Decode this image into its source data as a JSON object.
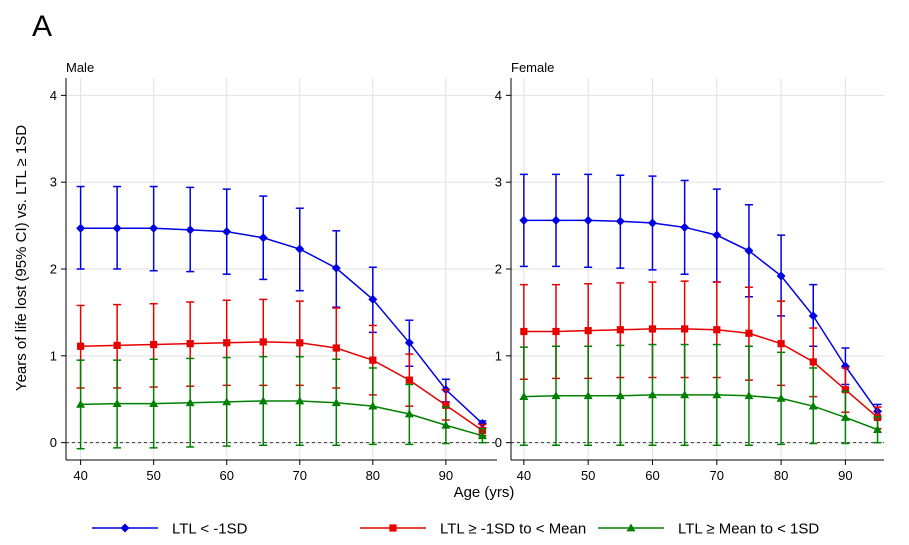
{
  "panel_label": "A",
  "xlabel": "Age (yrs)",
  "ylabel": "Years of life lost (95% CI) vs. LTL ≥ 1SD",
  "chart_data": [
    {
      "type": "line",
      "title": "Male",
      "x": [
        40,
        45,
        50,
        55,
        60,
        65,
        70,
        75,
        80,
        85,
        90,
        95
      ],
      "xticks": [
        40,
        50,
        60,
        70,
        80,
        90
      ],
      "yticks": [
        0,
        1,
        2,
        3,
        4
      ],
      "xlim": [
        38,
        97
      ],
      "ylim": [
        -0.2,
        4.2
      ],
      "reference_line": 0,
      "grid": true,
      "series": [
        {
          "name": "LTL < -1SD",
          "color": "#0000e6",
          "marker": "diamond",
          "values": [
            2.47,
            2.47,
            2.47,
            2.45,
            2.43,
            2.36,
            2.23,
            2.01,
            1.65,
            1.15,
            0.61,
            0.22
          ],
          "lower": [
            2.0,
            2.0,
            1.98,
            1.97,
            1.94,
            1.88,
            1.75,
            1.56,
            1.27,
            0.88,
            0.47,
            0.17
          ],
          "upper": [
            2.95,
            2.95,
            2.95,
            2.94,
            2.92,
            2.84,
            2.7,
            2.44,
            2.02,
            1.41,
            0.73,
            0.25
          ]
        },
        {
          "name": "LTL ≥ -1SD to < Mean",
          "color": "#e60000",
          "marker": "square",
          "values": [
            1.11,
            1.12,
            1.13,
            1.14,
            1.15,
            1.16,
            1.15,
            1.09,
            0.95,
            0.72,
            0.43,
            0.14
          ],
          "lower": [
            0.63,
            0.63,
            0.64,
            0.65,
            0.66,
            0.66,
            0.66,
            0.63,
            0.55,
            0.42,
            0.26,
            0.08
          ],
          "upper": [
            1.58,
            1.59,
            1.6,
            1.62,
            1.64,
            1.65,
            1.63,
            1.55,
            1.35,
            1.02,
            0.61,
            0.21
          ]
        },
        {
          "name": "LTL ≥ Mean to < 1SD",
          "color": "#008000",
          "marker": "triangle",
          "values": [
            0.44,
            0.45,
            0.45,
            0.46,
            0.47,
            0.48,
            0.48,
            0.46,
            0.42,
            0.33,
            0.2,
            0.08
          ],
          "lower": [
            -0.07,
            -0.06,
            -0.06,
            -0.05,
            -0.04,
            -0.03,
            -0.03,
            -0.03,
            -0.02,
            -0.02,
            -0.01,
            0.0
          ],
          "upper": [
            0.95,
            0.95,
            0.96,
            0.97,
            0.98,
            0.99,
            0.99,
            0.96,
            0.86,
            0.67,
            0.41,
            0.16
          ]
        }
      ]
    },
    {
      "type": "line",
      "title": "Female",
      "x": [
        40,
        45,
        50,
        55,
        60,
        65,
        70,
        75,
        80,
        85,
        90,
        95
      ],
      "xticks": [
        40,
        50,
        60,
        70,
        80,
        90
      ],
      "yticks": [
        0,
        1,
        2,
        3,
        4
      ],
      "xlim": [
        38,
        96
      ],
      "ylim": [
        -0.2,
        4.2
      ],
      "reference_line": 0,
      "grid": true,
      "series": [
        {
          "name": "LTL < -1SD",
          "color": "#0000e6",
          "marker": "diamond",
          "values": [
            2.56,
            2.56,
            2.56,
            2.55,
            2.53,
            2.48,
            2.39,
            2.21,
            1.92,
            1.46,
            0.88,
            0.36
          ],
          "lower": [
            2.03,
            2.03,
            2.02,
            2.01,
            1.99,
            1.94,
            1.85,
            1.68,
            1.46,
            1.11,
            0.67,
            0.28
          ],
          "upper": [
            3.09,
            3.09,
            3.09,
            3.08,
            3.07,
            3.02,
            2.92,
            2.74,
            2.39,
            1.82,
            1.09,
            0.44
          ]
        },
        {
          "name": "LTL ≥ -1SD to < Mean",
          "color": "#e60000",
          "marker": "square",
          "values": [
            1.28,
            1.28,
            1.29,
            1.3,
            1.31,
            1.31,
            1.3,
            1.26,
            1.14,
            0.93,
            0.61,
            0.29
          ],
          "lower": [
            0.73,
            0.74,
            0.74,
            0.75,
            0.75,
            0.75,
            0.75,
            0.72,
            0.66,
            0.53,
            0.35,
            0.16
          ],
          "upper": [
            1.82,
            1.82,
            1.83,
            1.84,
            1.85,
            1.86,
            1.85,
            1.79,
            1.63,
            1.32,
            0.86,
            0.41
          ]
        },
        {
          "name": "LTL ≥ Mean to < 1SD",
          "color": "#008000",
          "marker": "triangle",
          "values": [
            0.53,
            0.54,
            0.54,
            0.54,
            0.55,
            0.55,
            0.55,
            0.54,
            0.51,
            0.42,
            0.29,
            0.15
          ],
          "lower": [
            -0.03,
            -0.03,
            -0.03,
            -0.03,
            -0.03,
            -0.03,
            -0.03,
            -0.03,
            -0.02,
            -0.01,
            -0.01,
            0.0
          ],
          "upper": [
            1.1,
            1.11,
            1.11,
            1.12,
            1.13,
            1.13,
            1.13,
            1.11,
            1.04,
            0.86,
            0.59,
            0.3
          ]
        }
      ]
    }
  ],
  "legend": {
    "placement": "bottom",
    "items": [
      {
        "label": "LTL < -1SD",
        "color": "#0000e6",
        "marker": "diamond"
      },
      {
        "label": "LTL ≥ -1SD to < Mean",
        "color": "#e60000",
        "marker": "square"
      },
      {
        "label": "LTL ≥ Mean to < 1SD",
        "color": "#008000",
        "marker": "triangle"
      }
    ]
  }
}
